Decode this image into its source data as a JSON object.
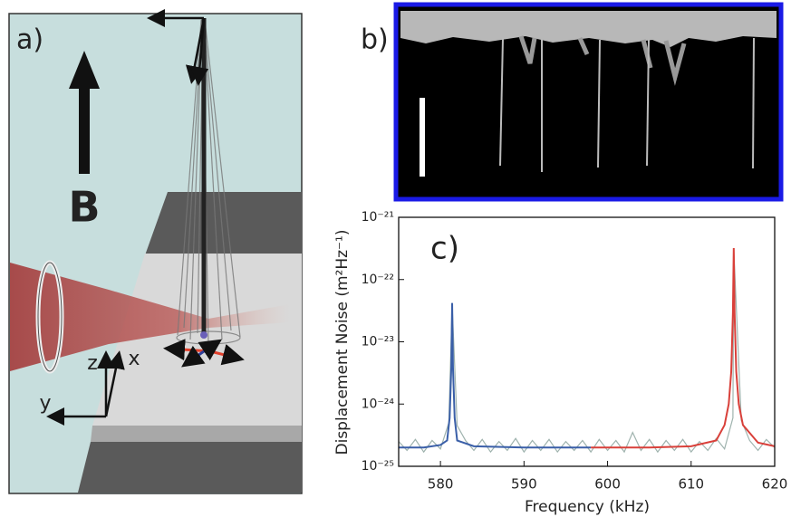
{
  "panel_a": {
    "label": "a)",
    "field": "B",
    "axes": {
      "z": "z",
      "x": "x",
      "y": "y"
    }
  },
  "panel_b": {
    "label": "b)"
  },
  "chart_data": {
    "type": "line",
    "annotation": "c)",
    "xlabel": "Frequency (kHz)",
    "ylabel": "Displacement Noise (m²Hz⁻¹)",
    "xlim": [
      575,
      620
    ],
    "xticks": [
      580,
      590,
      600,
      610,
      620
    ],
    "ylim": [
      1e-25,
      1e-21
    ],
    "log_y": true,
    "yticks": [
      {
        "value": 1e-25,
        "label": "10⁻²⁵"
      },
      {
        "value": 1e-24,
        "label": "10⁻²⁴"
      },
      {
        "value": 1e-23,
        "label": "10⁻²³"
      },
      {
        "value": 1e-22,
        "label": "10⁻²²"
      },
      {
        "value": 1e-21,
        "label": "10⁻²¹"
      }
    ],
    "series": [
      {
        "color": "#9fb3ae",
        "x": [
          575,
          576,
          577,
          578,
          579,
          580,
          581,
          581.4,
          582,
          583,
          584,
          585,
          586,
          587,
          588,
          589,
          590,
          591,
          592,
          593,
          594,
          595,
          596,
          597,
          598,
          599,
          600,
          601,
          602,
          603,
          604,
          605,
          606,
          607,
          608,
          609,
          610,
          611,
          612,
          613,
          614,
          615,
          615.1,
          616,
          617,
          618,
          619,
          620
        ],
        "values": [
          2.5e-25,
          1.8e-25,
          2.7e-25,
          1.7e-25,
          2.6e-25,
          1.9e-25,
          5e-25,
          4e-23,
          4.5e-25,
          2.6e-25,
          1.8e-25,
          2.7e-25,
          1.7e-25,
          2.5e-25,
          1.8e-25,
          2.8e-25,
          1.7e-25,
          2.6e-25,
          1.8e-25,
          2.7e-25,
          1.7e-25,
          2.5e-25,
          1.8e-25,
          2.6e-25,
          1.7e-25,
          2.7e-25,
          1.8e-25,
          2.6e-25,
          1.7e-25,
          3.5e-25,
          1.8e-25,
          2.7e-25,
          1.7e-25,
          2.6e-25,
          1.8e-25,
          2.7e-25,
          1.7e-25,
          2.5e-25,
          1.8e-25,
          2.8e-25,
          1.9e-25,
          6e-25,
          3.1e-22,
          5.5e-25,
          2.6e-25,
          1.8e-25,
          2.7e-25,
          2e-25
        ]
      },
      {
        "color": "#3a5fa8",
        "x": [
          575,
          578,
          580,
          580.8,
          581.1,
          581.3,
          581.4,
          581.5,
          581.7,
          582,
          584,
          590,
          598
        ],
        "values": [
          2e-25,
          2e-25,
          2.2e-25,
          2.6e-25,
          6e-25,
          3.9e-24,
          4.2e-23,
          3.9e-24,
          6e-25,
          2.6e-25,
          2.1e-25,
          2e-25,
          2e-25
        ]
      },
      {
        "color": "#d9403a",
        "x": [
          598,
          605,
          610,
          613,
          614,
          614.5,
          614.8,
          615,
          615.1,
          615.2,
          615.4,
          615.7,
          616.2,
          618,
          620
        ],
        "values": [
          2e-25,
          2e-25,
          2.1e-25,
          2.6e-25,
          4.6e-25,
          1e-24,
          3.3e-24,
          2.9e-23,
          3.2e-22,
          2.9e-23,
          3.3e-24,
          1e-24,
          4.6e-25,
          2.4e-25,
          2.1e-25
        ]
      }
    ]
  }
}
